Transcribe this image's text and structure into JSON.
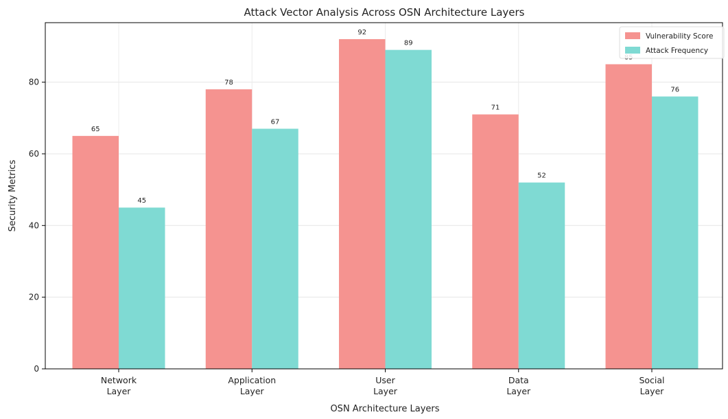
{
  "chart_data": {
    "type": "bar",
    "title": "Attack Vector Analysis Across OSN Architecture Layers",
    "xlabel": "OSN Architecture Layers",
    "ylabel": "Security Metrics",
    "categories": [
      [
        "Network",
        "Layer"
      ],
      [
        "Application",
        "Layer"
      ],
      [
        "User",
        "Layer"
      ],
      [
        "Data",
        "Layer"
      ],
      [
        "Social",
        "Layer"
      ]
    ],
    "series": [
      {
        "name": "Vulnerability Score",
        "color": "#f59390",
        "values": [
          65,
          78,
          92,
          71,
          85
        ]
      },
      {
        "name": "Attack Frequency",
        "color": "#7fdad3",
        "values": [
          45,
          67,
          89,
          52,
          76
        ]
      }
    ],
    "ylim": [
      0,
      96.6
    ],
    "yticks": [
      0,
      20,
      40,
      60,
      80
    ],
    "grid": true,
    "legend_position": "top-right"
  }
}
